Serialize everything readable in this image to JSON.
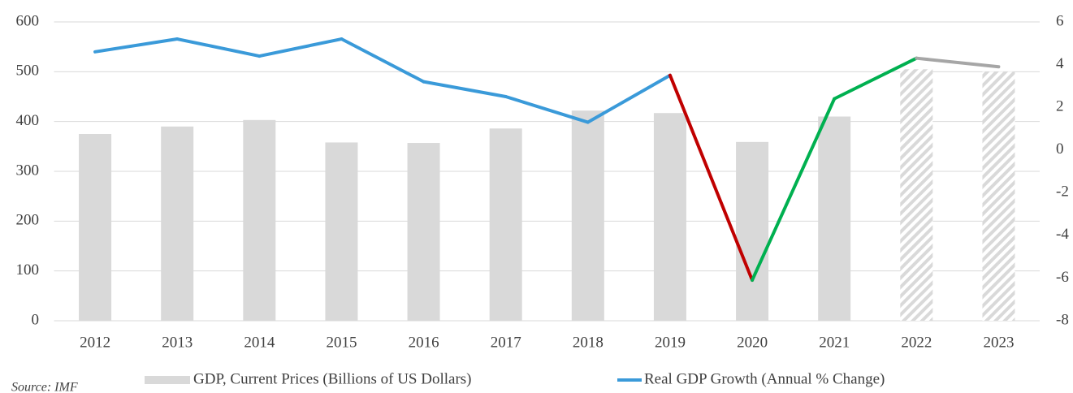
{
  "chart_data": {
    "type": "bar_line",
    "source": "Source: IMF",
    "categories": [
      "2012",
      "2013",
      "2014",
      "2015",
      "2016",
      "2017",
      "2018",
      "2019",
      "2020",
      "2021",
      "2022",
      "2023"
    ],
    "ylim": [
      0,
      600
    ],
    "yticks": [
      0,
      100,
      200,
      300,
      400,
      500,
      600
    ],
    "y2lim": [
      -8,
      6
    ],
    "y2ticks": [
      -8,
      -6,
      -4,
      -2,
      0,
      2,
      4,
      6
    ],
    "grid": true,
    "legend": "bottom",
    "series": [
      {
        "name": "GDP, Current Prices (Billions of US Dollars)",
        "type": "bar",
        "color": "#d9d9d9",
        "values": [
          375,
          390,
          403,
          358,
          357,
          386,
          422,
          417,
          359,
          410,
          505,
          500
        ],
        "hatched": [
          false,
          false,
          false,
          false,
          false,
          false,
          false,
          false,
          false,
          false,
          true,
          true
        ]
      },
      {
        "name": "Real GDP Growth (Annual % Change)",
        "type": "line",
        "axis": "y2",
        "color": "#3a9ad9",
        "values": [
          4.6,
          5.2,
          4.4,
          5.2,
          3.2,
          2.5,
          1.3,
          3.5,
          -6.1,
          2.4,
          4.3,
          3.9
        ],
        "segment_colors": [
          "#3a9ad9",
          "#3a9ad9",
          "#3a9ad9",
          "#3a9ad9",
          "#3a9ad9",
          "#3a9ad9",
          "#3a9ad9",
          "#c00000",
          "#00b050",
          "#00b050",
          "#a6a6a6"
        ]
      }
    ]
  }
}
